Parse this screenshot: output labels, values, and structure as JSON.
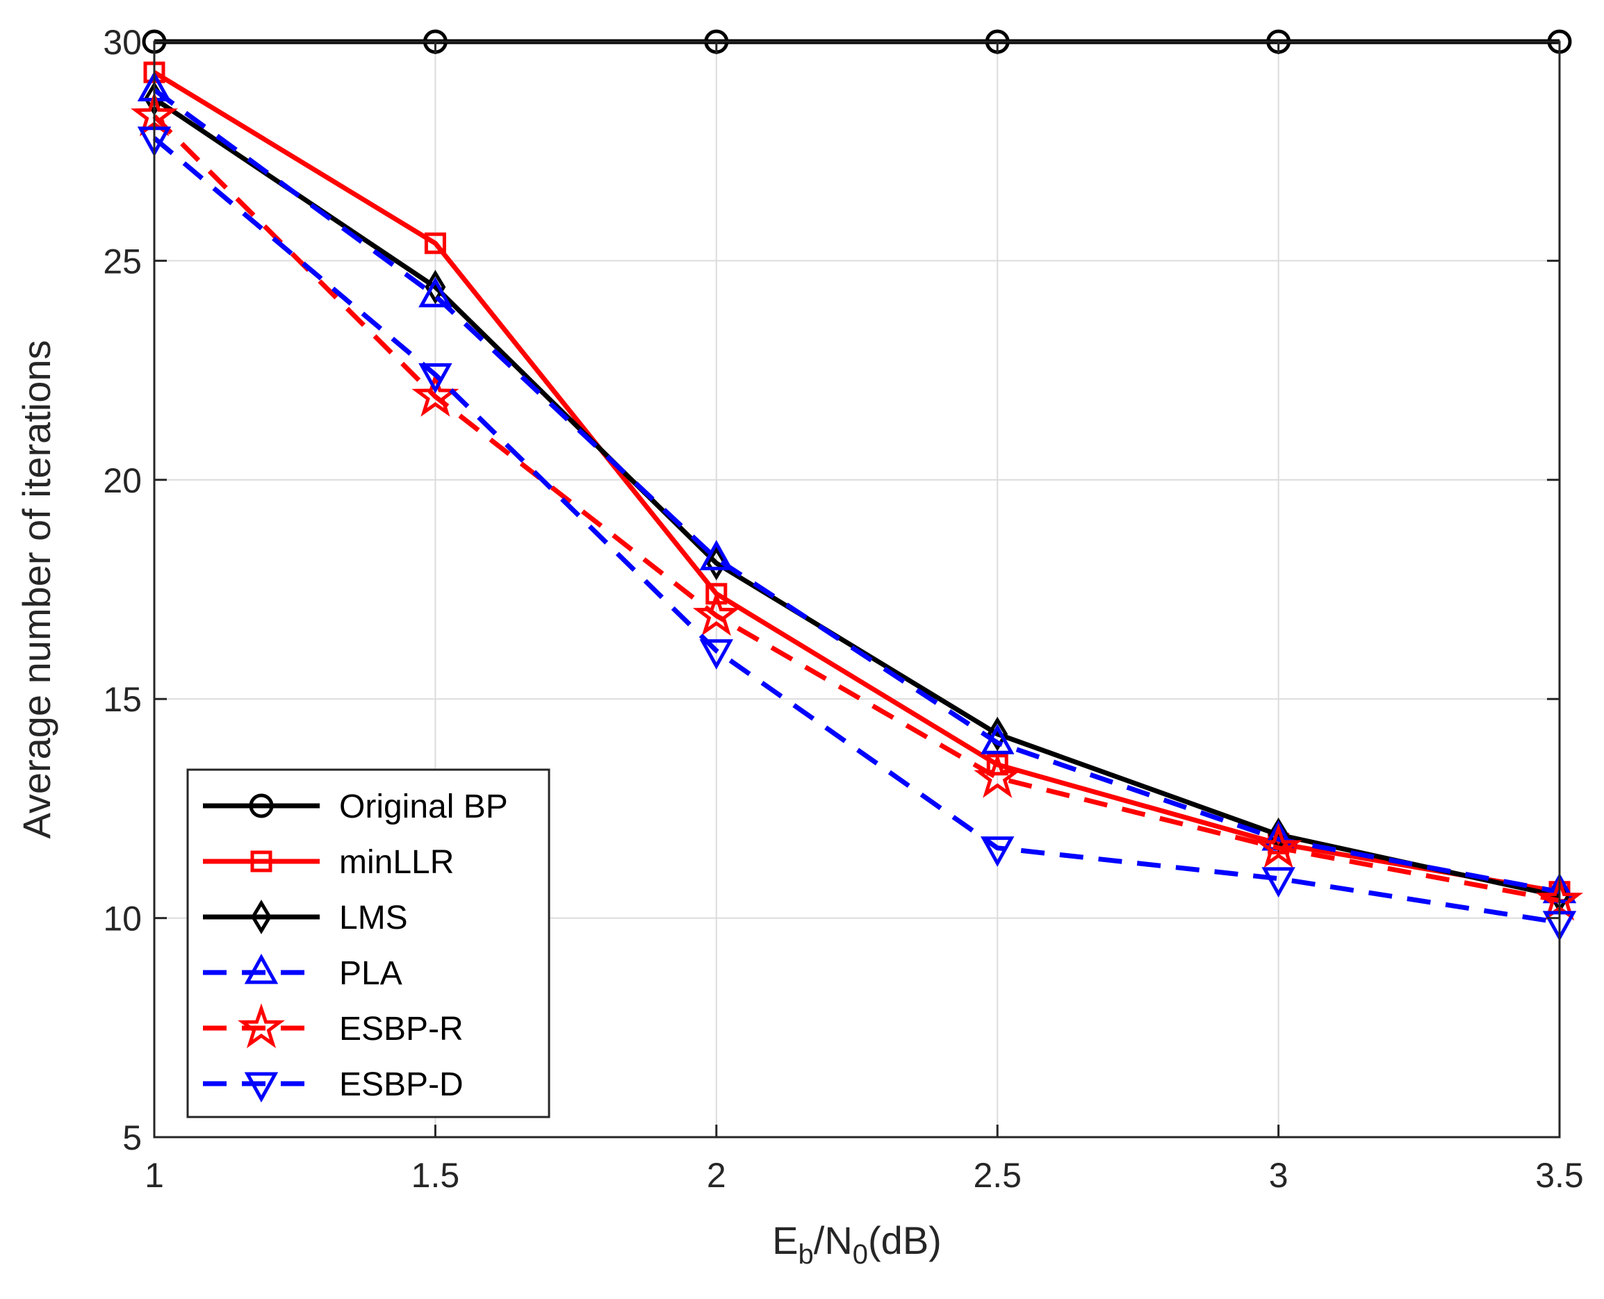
{
  "chart_data": {
    "type": "line",
    "title": "",
    "xlabel": {
      "main": "E",
      "sub1": "b",
      "mid": "/N",
      "sub2": "0",
      "tail": "(dB)"
    },
    "ylabel": "Average number of iterations",
    "xlim": [
      1,
      3.5
    ],
    "ylim": [
      5,
      30
    ],
    "grid": true,
    "x": [
      1,
      1.5,
      2,
      2.5,
      3,
      3.5
    ],
    "xticks": [
      1,
      1.5,
      2,
      2.5,
      3,
      3.5
    ],
    "xtick_labels": [
      "1",
      "1.5",
      "2",
      "2.5",
      "3",
      "3.5"
    ],
    "yticks": [
      5,
      10,
      15,
      20,
      25,
      30
    ],
    "ytick_labels": [
      "5",
      "10",
      "15",
      "20",
      "25",
      "30"
    ],
    "legend_position": "bottom-left",
    "series": [
      {
        "name": "Original BP",
        "values": [
          30,
          30,
          30,
          30,
          30,
          30
        ],
        "color": "#000000",
        "dash": "solid",
        "marker": "circle"
      },
      {
        "name": "minLLR",
        "values": [
          29.3,
          25.4,
          17.4,
          13.5,
          11.7,
          10.6
        ],
        "color": "#ff0000",
        "dash": "solid",
        "marker": "square"
      },
      {
        "name": "LMS",
        "values": [
          28.7,
          24.4,
          18.1,
          14.2,
          11.9,
          10.5
        ],
        "color": "#000000",
        "dash": "solid",
        "marker": "diamond"
      },
      {
        "name": "PLA",
        "values": [
          28.9,
          24.2,
          18.2,
          14.0,
          11.8,
          10.6
        ],
        "color": "#0000ff",
        "dash": "dashed",
        "marker": "triangle-up"
      },
      {
        "name": "ESBP-R",
        "values": [
          28.3,
          21.9,
          16.9,
          13.2,
          11.6,
          10.4
        ],
        "color": "#ff0000",
        "dash": "dashed",
        "marker": "star"
      },
      {
        "name": "ESBP-D",
        "values": [
          27.8,
          22.4,
          16.1,
          11.6,
          10.9,
          9.9
        ],
        "color": "#0000ff",
        "dash": "dashed",
        "marker": "triangle-down"
      }
    ]
  }
}
